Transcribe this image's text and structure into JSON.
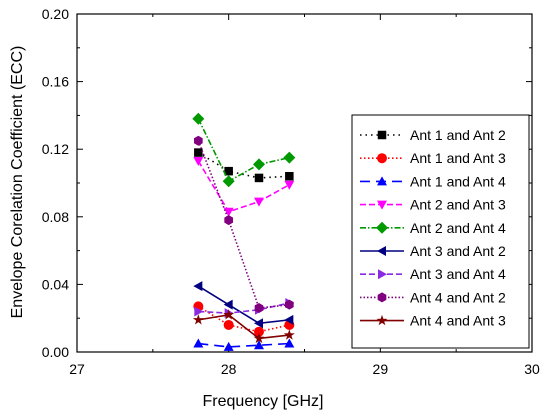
{
  "chart_data": {
    "type": "line",
    "title": "",
    "xlabel": "Frequency [GHz]",
    "ylabel": "Envelope Corelation Coefficient (ECC)",
    "xlim": [
      27,
      30
    ],
    "ylim": [
      0,
      0.2
    ],
    "xticks": [
      "27",
      "28",
      "29",
      "30"
    ],
    "yticks": [
      "0.00",
      "0.04",
      "0.08",
      "0.12",
      "0.16",
      "0.20"
    ],
    "grid": false,
    "legend_position": "right",
    "x": [
      27.8,
      28.0,
      28.2,
      28.4
    ],
    "series": [
      {
        "name": "Ant 1 and Ant 2",
        "values": [
          0.118,
          0.107,
          0.103,
          0.104
        ],
        "color": "#000000",
        "marker": "square",
        "dash": "1.5,4"
      },
      {
        "name": "Ant 1 and Ant 3",
        "values": [
          0.027,
          0.016,
          0.012,
          0.016
        ],
        "color": "#ff0000",
        "marker": "circle",
        "dash": "1.5,2.5"
      },
      {
        "name": "Ant 1 and Ant 4",
        "values": [
          0.005,
          0.003,
          0.004,
          0.005
        ],
        "color": "#0000ff",
        "marker": "triangle-up",
        "dash": "10,6"
      },
      {
        "name": "Ant 2 and Ant 3",
        "values": [
          0.113,
          0.083,
          0.089,
          0.099
        ],
        "color": "#ff00ff",
        "marker": "triangle-down",
        "dash": "6,3"
      },
      {
        "name": "Ant 2 and Ant 4",
        "values": [
          0.138,
          0.101,
          0.111,
          0.115
        ],
        "color": "#009900",
        "marker": "diamond",
        "dash": "6,2,1.5,2"
      },
      {
        "name": "Ant 3 and Ant 2",
        "values": [
          0.039,
          0.028,
          0.017,
          0.019
        ],
        "color": "#000080",
        "marker": "triangle-left",
        "dash": ""
      },
      {
        "name": "Ant 3 and Ant 4",
        "values": [
          0.024,
          0.023,
          0.025,
          0.029
        ],
        "color": "#8a2be2",
        "marker": "triangle-right",
        "dash": "6,3"
      },
      {
        "name": "Ant 4 and Ant 2",
        "values": [
          0.125,
          0.078,
          0.026,
          0.028
        ],
        "color": "#800080",
        "marker": "hexagon",
        "dash": "1.5,2"
      },
      {
        "name": "Ant 4 and Ant 3",
        "values": [
          0.019,
          0.022,
          0.008,
          0.01
        ],
        "color": "#800000",
        "marker": "star",
        "dash": ""
      }
    ]
  }
}
